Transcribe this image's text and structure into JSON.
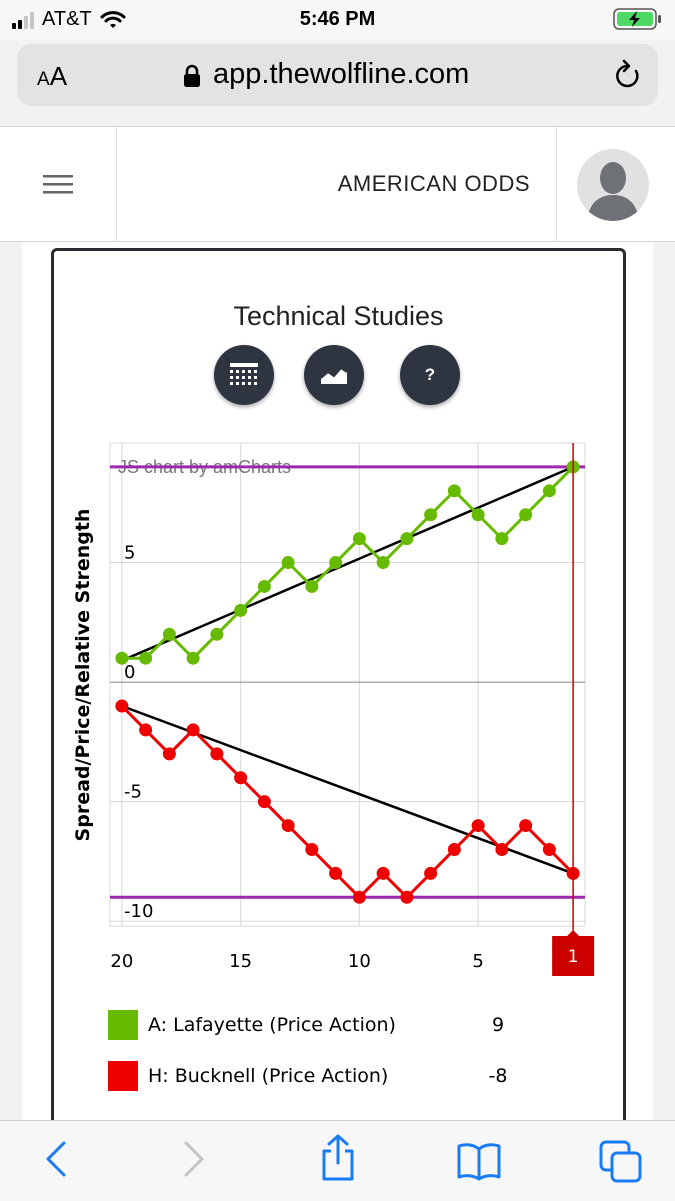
{
  "status_bar": {
    "carrier": "AT&T",
    "time": "5:46 PM"
  },
  "address_bar": {
    "text_size_label": "AA",
    "url": "app.thewolfline.com"
  },
  "header": {
    "title": "AMERICAN ODDS"
  },
  "card": {
    "title": "Technical Studies",
    "buttons": [
      {
        "name": "grid-icon",
        "label": ""
      },
      {
        "name": "area-chart-icon",
        "label": ""
      },
      {
        "name": "help-button",
        "label": "?"
      }
    ]
  },
  "chart_data": {
    "type": "line",
    "ylabel": "Spread/Price/Relative Strength",
    "watermark": "JS chart by amCharts",
    "xlim": [
      20.5,
      0.5
    ],
    "ylim": [
      -10.2,
      10
    ],
    "x_ticks": [
      "20",
      "15",
      "10",
      "5"
    ],
    "y_ticks": [
      {
        "value": 5,
        "label": "5"
      },
      {
        "value": 0,
        "label": "0"
      },
      {
        "value": -5,
        "label": "-5"
      },
      {
        "value": -10,
        "label": "-10"
      }
    ],
    "cursor": {
      "x": 1,
      "label": "1"
    },
    "reference_lines": [
      9,
      -9
    ],
    "x": [
      20,
      19,
      18,
      17,
      16,
      15,
      14,
      13,
      12,
      11,
      10,
      9,
      8,
      7,
      6,
      5,
      4,
      3,
      2,
      1
    ],
    "series": [
      {
        "name": "A: Lafayette (Price Action)",
        "color": "#66bb00",
        "values": [
          1,
          1,
          2,
          1,
          2,
          3,
          4,
          5,
          4,
          5,
          6,
          5,
          6,
          7,
          8,
          7,
          6,
          7,
          8,
          9
        ],
        "trend": [
          0.9,
          9
        ]
      },
      {
        "name": "H: Bucknell (Price Action)",
        "color": "#ee0000",
        "values": [
          -1,
          -2,
          -3,
          -2,
          -3,
          -4,
          -5,
          -6,
          -7,
          -8,
          -9,
          -8,
          -9,
          -8,
          -7,
          -6,
          -7,
          -6,
          -7,
          -8
        ],
        "trend": [
          -1,
          -8
        ]
      }
    ]
  },
  "legend": [
    {
      "label": "A: Lafayette (Price Action)",
      "value": "9",
      "color": "#66bb00"
    },
    {
      "label": "H: Bucknell (Price Action)",
      "value": "-8",
      "color": "#ee0000"
    }
  ]
}
